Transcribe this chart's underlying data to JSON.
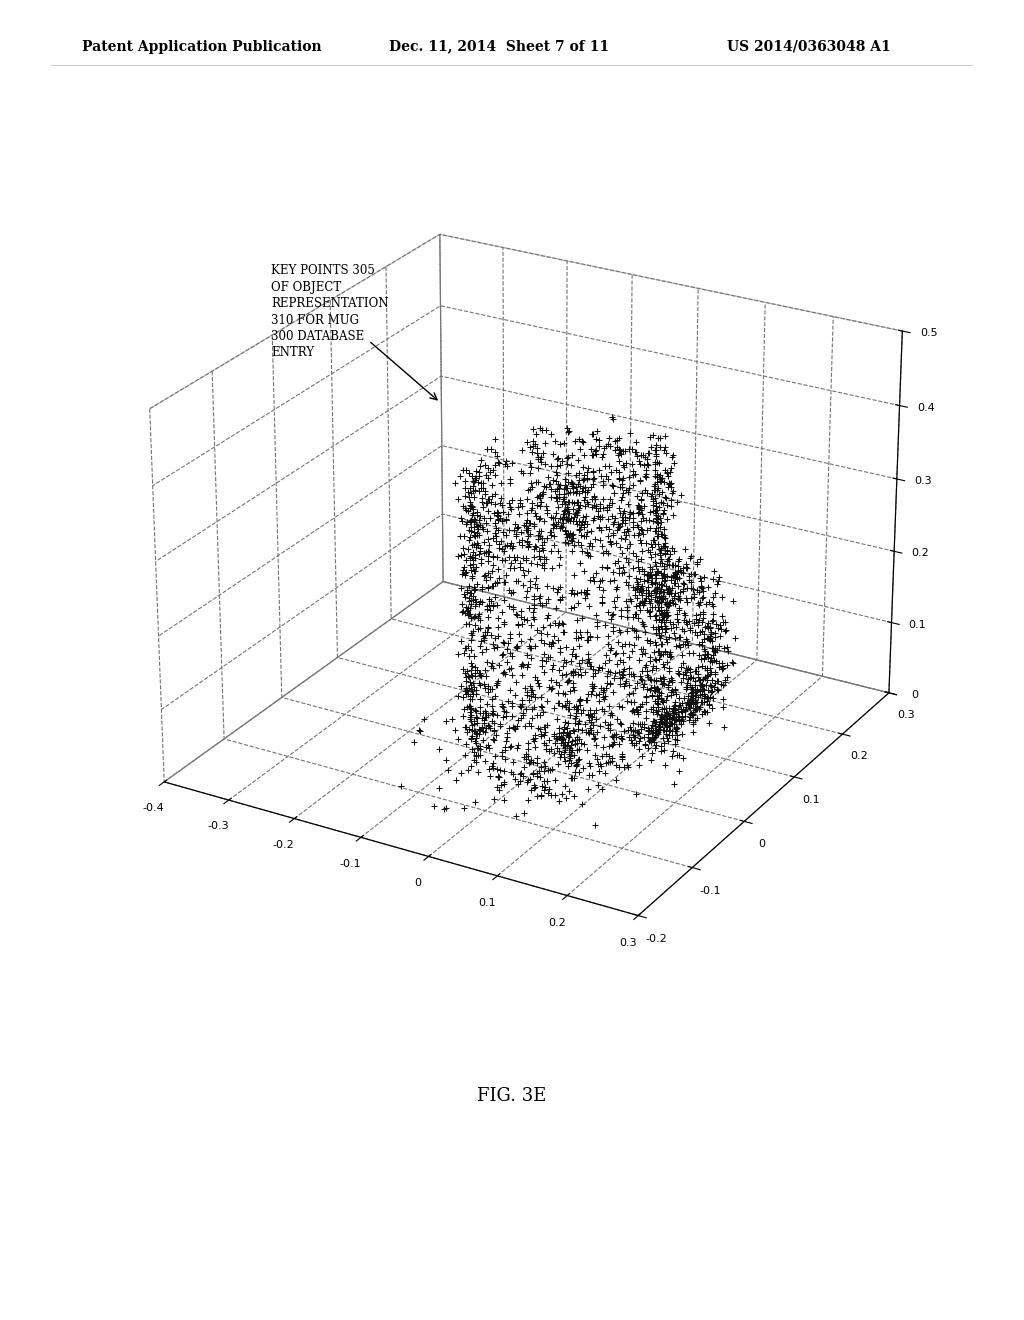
{
  "header_left": "Patent Application Publication",
  "header_mid": "Dec. 11, 2014  Sheet 7 of 11",
  "header_right": "US 2014/0363048 A1",
  "figure_label": "FIG. 3E",
  "annotation_text": "KEY POINTS 305\nOF OBJECT\nREPRESENTATION\n310 FOR MUG\n300 DATABASE\nENTRY",
  "xlim": [
    -0.4,
    0.3
  ],
  "ylim": [
    -0.2,
    0.3
  ],
  "zlim": [
    0.0,
    0.5
  ],
  "xticks": [
    -0.4,
    -0.3,
    -0.2,
    -0.1,
    0.0,
    0.1,
    0.2,
    0.3
  ],
  "yticks": [
    -0.2,
    -0.1,
    0.0,
    0.1,
    0.2,
    0.3
  ],
  "zticks": [
    0.0,
    0.1,
    0.2,
    0.3,
    0.4,
    0.5
  ],
  "point_color": "#111111",
  "background_color": "#ffffff",
  "seed": 42,
  "n_points": 3000,
  "elev": 25,
  "azim": -60
}
